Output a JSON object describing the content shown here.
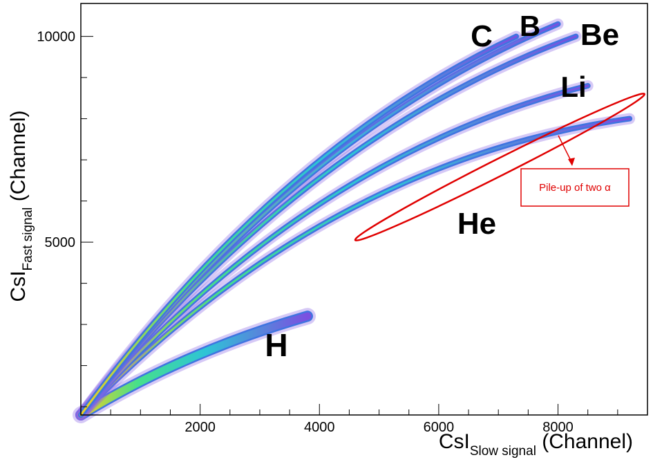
{
  "chart_data": {
    "type": "heatmap",
    "xlabel": {
      "main": "CsI",
      "sub": "Slow signal",
      "unit": " (Channel)"
    },
    "ylabel": {
      "main": "CsI",
      "sub": "Fast signal",
      "unit": " (Channel)"
    },
    "xlim": [
      0,
      9500
    ],
    "ylim": [
      800,
      10800
    ],
    "x_ticks": [
      2000,
      4000,
      6000,
      8000
    ],
    "x_tick_labels": [
      "2000",
      "4000",
      "6000",
      "8000"
    ],
    "y_ticks": [
      5000,
      10000
    ],
    "y_tick_labels": [
      "5000",
      "10000"
    ],
    "grid": false,
    "colormap": [
      "#7b4fe0",
      "#4f7de8",
      "#2ec4d6",
      "#46e08a",
      "#c6ef3a",
      "#f0d020"
    ],
    "bands": [
      {
        "label": "H",
        "x_end": 3800,
        "y_end": 3200
      },
      {
        "label": "He",
        "x_end": 9200,
        "y_end": 8000
      },
      {
        "label": "Li",
        "x_end": 8500,
        "y_end": 8800
      },
      {
        "label": "Be",
        "x_end": 8300,
        "y_end": 10000
      },
      {
        "label": "B",
        "x_end": 8000,
        "y_end": 10300
      },
      {
        "label": "C",
        "x_end": 7300,
        "y_end": 10000
      }
    ],
    "annotations": [
      {
        "text": "Pile-up of two α",
        "x": 7700,
        "y": 6000,
        "color": "#e00000"
      }
    ],
    "highlight_ellipse": {
      "x1": 4600,
      "y1": 5050,
      "x2": 9450,
      "y2": 8600,
      "color": "#e00000"
    }
  }
}
